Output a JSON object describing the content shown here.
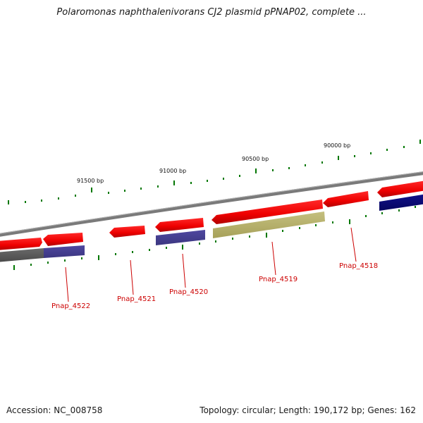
{
  "title": "Polaromonas naphthalenivorans CJ2 plasmid pPNAP02, complete ...",
  "footer": {
    "accession": "Accession: NC_008758",
    "topology": "Topology: circular; Length: 190,172 bp; Genes: 162"
  },
  "colors": {
    "backbone": "#808080",
    "gene_forward": "#ff0000",
    "tick": "#007700",
    "label": "#cc0000",
    "feature_purple": "#4a4490",
    "feature_navy": "#0b0b7a",
    "feature_olive": "#b9b36b",
    "feature_gray": "#5c5c5c"
  },
  "ruler": [
    {
      "bp": 91500,
      "label": "91500 bp"
    },
    {
      "bp": 91000,
      "label": "91000 bp"
    },
    {
      "bp": 90500,
      "label": "90500 bp"
    },
    {
      "bp": 90000,
      "label": "90000 bp"
    }
  ],
  "genes": [
    {
      "name": "Pnap_4522"
    },
    {
      "name": "Pnap_4521"
    },
    {
      "name": "Pnap_4520"
    },
    {
      "name": "Pnap_4519"
    },
    {
      "name": "Pnap_4518"
    }
  ]
}
